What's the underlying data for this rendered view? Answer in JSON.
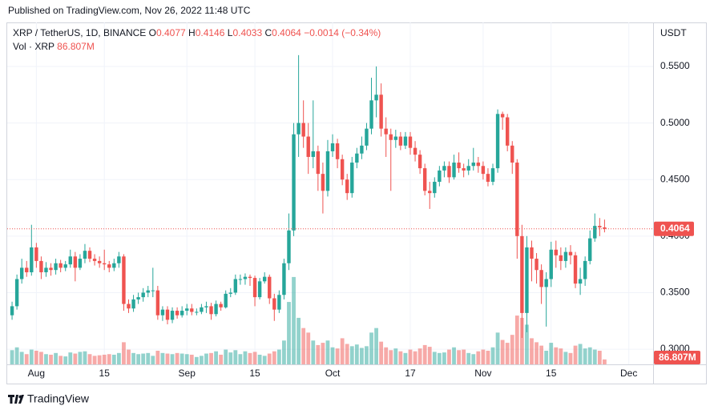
{
  "published": "Published on TradingView.com, Nov 26, 2022 11:48 UTC",
  "brand": "TradingView",
  "chart_data": {
    "type": "candlestick",
    "legend": {
      "symbol": "XRP / TetherUS, 1D, BINANCE",
      "keys": [
        "O",
        "H",
        "L",
        "C"
      ],
      "change": "−0.0014 (−0.34%)",
      "volume_name": "Vol · XRP"
    },
    "currency": "USDT",
    "up_color": "#26a69a",
    "down_color": "#ef5350",
    "volume_up_color": "rgba(38,166,154,0.5)",
    "volume_down_color": "rgba(239,83,80,0.5)",
    "grid": true,
    "xlim": [
      "2022-07-26",
      "2022-12-06"
    ],
    "xticks": [
      {
        "value": "2022-08-01",
        "label": "Aug"
      },
      {
        "value": "2022-08-15",
        "label": "15"
      },
      {
        "value": "2022-09-01",
        "label": "Sep"
      },
      {
        "value": "2022-09-15",
        "label": "15"
      },
      {
        "value": "2022-10-01",
        "label": "Oct"
      },
      {
        "value": "2022-10-17",
        "label": "17"
      },
      {
        "value": "2022-11-01",
        "label": "Nov"
      },
      {
        "value": "2022-11-15",
        "label": "15"
      },
      {
        "value": "2022-12-01",
        "label": "Dec"
      }
    ],
    "ylim": [
      0.2866,
      0.5875
    ],
    "yticks": [
      {
        "value": 0.3,
        "label": "0.3000"
      },
      {
        "value": 0.35,
        "label": "0.3500"
      },
      {
        "value": 0.4,
        "label": "0.4000"
      },
      {
        "value": 0.45,
        "label": "0.4500"
      },
      {
        "value": 0.5,
        "label": "0.5000"
      },
      {
        "value": 0.55,
        "label": "0.5500"
      }
    ],
    "volume_lim": [
      0,
      6000
    ],
    "x": [
      "2022-07-27",
      "2022-07-28",
      "2022-07-29",
      "2022-07-30",
      "2022-07-31",
      "2022-08-01",
      "2022-08-02",
      "2022-08-03",
      "2022-08-04",
      "2022-08-05",
      "2022-08-06",
      "2022-08-07",
      "2022-08-08",
      "2022-08-09",
      "2022-08-10",
      "2022-08-11",
      "2022-08-12",
      "2022-08-13",
      "2022-08-14",
      "2022-08-15",
      "2022-08-16",
      "2022-08-17",
      "2022-08-18",
      "2022-08-19",
      "2022-08-20",
      "2022-08-21",
      "2022-08-22",
      "2022-08-23",
      "2022-08-24",
      "2022-08-25",
      "2022-08-26",
      "2022-08-27",
      "2022-08-28",
      "2022-08-29",
      "2022-08-30",
      "2022-08-31",
      "2022-09-01",
      "2022-09-02",
      "2022-09-03",
      "2022-09-04",
      "2022-09-05",
      "2022-09-06",
      "2022-09-07",
      "2022-09-08",
      "2022-09-09",
      "2022-09-10",
      "2022-09-11",
      "2022-09-12",
      "2022-09-13",
      "2022-09-14",
      "2022-09-15",
      "2022-09-16",
      "2022-09-17",
      "2022-09-18",
      "2022-09-19",
      "2022-09-20",
      "2022-09-21",
      "2022-09-22",
      "2022-09-23",
      "2022-09-24",
      "2022-09-25",
      "2022-09-26",
      "2022-09-27",
      "2022-09-28",
      "2022-09-29",
      "2022-09-30",
      "2022-10-01",
      "2022-10-02",
      "2022-10-03",
      "2022-10-04",
      "2022-10-05",
      "2022-10-06",
      "2022-10-07",
      "2022-10-08",
      "2022-10-09",
      "2022-10-10",
      "2022-10-11",
      "2022-10-12",
      "2022-10-13",
      "2022-10-14",
      "2022-10-15",
      "2022-10-16",
      "2022-10-17",
      "2022-10-18",
      "2022-10-19",
      "2022-10-20",
      "2022-10-21",
      "2022-10-22",
      "2022-10-23",
      "2022-10-24",
      "2022-10-25",
      "2022-10-26",
      "2022-10-27",
      "2022-10-28",
      "2022-10-29",
      "2022-10-30",
      "2022-10-31",
      "2022-11-01",
      "2022-11-02",
      "2022-11-03",
      "2022-11-04",
      "2022-11-05",
      "2022-11-06",
      "2022-11-07",
      "2022-11-08",
      "2022-11-09",
      "2022-11-10",
      "2022-11-11",
      "2022-11-12",
      "2022-11-13",
      "2022-11-14",
      "2022-11-15",
      "2022-11-16",
      "2022-11-17",
      "2022-11-18",
      "2022-11-19",
      "2022-11-20",
      "2022-11-21",
      "2022-11-22",
      "2022-11-23",
      "2022-11-24",
      "2022-11-25",
      "2022-11-26"
    ],
    "open": [
      0.33,
      0.338,
      0.362,
      0.372,
      0.368,
      0.39,
      0.378,
      0.368,
      0.372,
      0.37,
      0.376,
      0.372,
      0.375,
      0.382,
      0.372,
      0.38,
      0.387,
      0.38,
      0.378,
      0.376,
      0.375,
      0.372,
      0.376,
      0.382,
      0.34,
      0.336,
      0.344,
      0.346,
      0.35,
      0.352,
      0.352,
      0.33,
      0.335,
      0.326,
      0.334,
      0.33,
      0.334,
      0.336,
      0.333,
      0.333,
      0.337,
      0.338,
      0.331,
      0.34,
      0.337,
      0.349,
      0.35,
      0.362,
      0.362,
      0.364,
      0.363,
      0.346,
      0.36,
      0.364,
      0.345,
      0.335,
      0.348,
      0.376,
      0.405,
      0.49,
      0.5,
      0.488,
      0.47,
      0.475,
      0.455,
      0.44,
      0.475,
      0.482,
      0.468,
      0.45,
      0.438,
      0.465,
      0.473,
      0.48,
      0.495,
      0.52,
      0.525,
      0.495,
      0.49,
      0.485,
      0.488,
      0.48,
      0.488,
      0.478,
      0.472,
      0.46,
      0.44,
      0.438,
      0.448,
      0.458,
      0.462,
      0.452,
      0.465,
      0.46,
      0.458,
      0.462,
      0.465,
      0.462,
      0.455,
      0.448,
      0.46,
      0.508,
      0.505,
      0.48,
      0.465,
      0.4,
      0.332,
      0.39,
      0.38,
      0.37,
      0.355,
      0.362,
      0.388,
      0.383,
      0.378,
      0.386,
      0.383,
      0.358,
      0.362,
      0.378,
      0.398,
      0.409,
      0.4077
    ],
    "high": [
      0.342,
      0.366,
      0.38,
      0.378,
      0.41,
      0.394,
      0.382,
      0.377,
      0.376,
      0.38,
      0.379,
      0.378,
      0.388,
      0.386,
      0.384,
      0.393,
      0.39,
      0.384,
      0.382,
      0.388,
      0.378,
      0.38,
      0.386,
      0.384,
      0.344,
      0.348,
      0.35,
      0.354,
      0.356,
      0.372,
      0.356,
      0.338,
      0.338,
      0.337,
      0.337,
      0.338,
      0.34,
      0.34,
      0.336,
      0.34,
      0.342,
      0.341,
      0.343,
      0.342,
      0.352,
      0.354,
      0.366,
      0.366,
      0.367,
      0.366,
      0.365,
      0.363,
      0.368,
      0.366,
      0.349,
      0.352,
      0.38,
      0.42,
      0.5,
      0.56,
      0.52,
      0.5,
      0.52,
      0.48,
      0.465,
      0.485,
      0.49,
      0.486,
      0.472,
      0.455,
      0.47,
      0.478,
      0.488,
      0.5,
      0.54,
      0.55,
      0.535,
      0.505,
      0.495,
      0.494,
      0.492,
      0.492,
      0.492,
      0.484,
      0.476,
      0.464,
      0.448,
      0.452,
      0.462,
      0.466,
      0.466,
      0.472,
      0.474,
      0.464,
      0.468,
      0.478,
      0.47,
      0.466,
      0.46,
      0.464,
      0.512,
      0.51,
      0.508,
      0.484,
      0.468,
      0.41,
      0.4,
      0.396,
      0.385,
      0.375,
      0.368,
      0.395,
      0.396,
      0.39,
      0.39,
      0.392,
      0.386,
      0.372,
      0.382,
      0.405,
      0.42,
      0.416,
      0.4146
    ],
    "low": [
      0.326,
      0.335,
      0.358,
      0.364,
      0.365,
      0.372,
      0.362,
      0.364,
      0.365,
      0.366,
      0.368,
      0.369,
      0.372,
      0.36,
      0.37,
      0.376,
      0.377,
      0.374,
      0.372,
      0.37,
      0.368,
      0.369,
      0.372,
      0.334,
      0.332,
      0.333,
      0.34,
      0.342,
      0.346,
      0.346,
      0.326,
      0.325,
      0.322,
      0.323,
      0.327,
      0.328,
      0.33,
      0.33,
      0.33,
      0.331,
      0.332,
      0.326,
      0.329,
      0.334,
      0.336,
      0.346,
      0.348,
      0.357,
      0.357,
      0.356,
      0.338,
      0.344,
      0.358,
      0.34,
      0.325,
      0.332,
      0.344,
      0.37,
      0.4,
      0.47,
      0.478,
      0.455,
      0.46,
      0.44,
      0.42,
      0.435,
      0.47,
      0.46,
      0.445,
      0.432,
      0.434,
      0.46,
      0.468,
      0.476,
      0.49,
      0.505,
      0.488,
      0.47,
      0.44,
      0.478,
      0.476,
      0.477,
      0.472,
      0.466,
      0.455,
      0.436,
      0.424,
      0.434,
      0.444,
      0.452,
      0.447,
      0.45,
      0.456,
      0.452,
      0.454,
      0.458,
      0.456,
      0.45,
      0.444,
      0.445,
      0.456,
      0.494,
      0.475,
      0.455,
      0.38,
      0.31,
      0.315,
      0.36,
      0.358,
      0.34,
      0.32,
      0.355,
      0.372,
      0.37,
      0.372,
      0.375,
      0.354,
      0.348,
      0.356,
      0.375,
      0.395,
      0.4,
      0.4033
    ],
    "close": [
      0.338,
      0.362,
      0.372,
      0.368,
      0.39,
      0.378,
      0.368,
      0.372,
      0.37,
      0.376,
      0.372,
      0.375,
      0.382,
      0.372,
      0.38,
      0.387,
      0.38,
      0.378,
      0.376,
      0.375,
      0.372,
      0.376,
      0.382,
      0.34,
      0.336,
      0.344,
      0.346,
      0.35,
      0.352,
      0.352,
      0.33,
      0.335,
      0.326,
      0.334,
      0.33,
      0.334,
      0.336,
      0.333,
      0.333,
      0.337,
      0.338,
      0.331,
      0.34,
      0.337,
      0.349,
      0.35,
      0.362,
      0.362,
      0.364,
      0.363,
      0.346,
      0.36,
      0.364,
      0.345,
      0.335,
      0.348,
      0.376,
      0.405,
      0.49,
      0.5,
      0.488,
      0.47,
      0.475,
      0.455,
      0.44,
      0.475,
      0.482,
      0.468,
      0.45,
      0.438,
      0.465,
      0.473,
      0.48,
      0.495,
      0.52,
      0.525,
      0.495,
      0.49,
      0.485,
      0.488,
      0.48,
      0.488,
      0.478,
      0.472,
      0.46,
      0.44,
      0.438,
      0.448,
      0.458,
      0.462,
      0.452,
      0.465,
      0.46,
      0.458,
      0.462,
      0.465,
      0.462,
      0.455,
      0.448,
      0.46,
      0.508,
      0.505,
      0.48,
      0.465,
      0.4,
      0.332,
      0.39,
      0.38,
      0.37,
      0.355,
      0.362,
      0.388,
      0.383,
      0.378,
      0.386,
      0.383,
      0.358,
      0.362,
      0.378,
      0.398,
      0.409,
      0.4077,
      0.4064
    ],
    "volume": [
      250,
      300,
      220,
      180,
      260,
      240,
      220,
      180,
      170,
      200,
      150,
      140,
      210,
      190,
      220,
      230,
      180,
      150,
      160,
      170,
      180,
      170,
      200,
      390,
      260,
      200,
      180,
      190,
      200,
      150,
      240,
      200,
      190,
      180,
      200,
      190,
      180,
      170,
      130,
      150,
      190,
      200,
      230,
      170,
      260,
      210,
      250,
      180,
      230,
      200,
      220,
      170,
      150,
      190,
      230,
      260,
      420,
      1100,
      1540,
      820,
      640,
      560,
      420,
      340,
      380,
      420,
      300,
      280,
      460,
      360,
      320,
      350,
      290,
      320,
      560,
      640,
      400,
      300,
      250,
      280,
      230,
      200,
      260,
      230,
      280,
      340,
      310,
      220,
      200,
      210,
      260,
      300,
      250,
      260,
      200,
      180,
      230,
      260,
      240,
      300,
      560,
      430,
      380,
      520,
      860,
      820,
      700,
      460,
      390,
      330,
      240,
      380,
      300,
      280,
      220,
      200,
      330,
      360,
      280,
      300,
      260,
      240,
      86.807
    ],
    "volume_value_labels": [
      null,
      null,
      null,
      null,
      null,
      null,
      null,
      null,
      null,
      null,
      null,
      null,
      null,
      null,
      null,
      null,
      null,
      null,
      null,
      null,
      null,
      null,
      null,
      null,
      null,
      null,
      null,
      null,
      null,
      null,
      null,
      null,
      null,
      null,
      null,
      null,
      null,
      null,
      null,
      null,
      null,
      null,
      null,
      null,
      null,
      null,
      null,
      null,
      null,
      null,
      null,
      null,
      null,
      null,
      null,
      null,
      null,
      null,
      null,
      null,
      null,
      null,
      null,
      null,
      null,
      null,
      null,
      null,
      null,
      null,
      null,
      null,
      null,
      null,
      null,
      null,
      null,
      null,
      null,
      null,
      null,
      null,
      null,
      null,
      null,
      null,
      null,
      null,
      null,
      null,
      null,
      null,
      null,
      null,
      null,
      null,
      null,
      null,
      null,
      null,
      null,
      null,
      null,
      null,
      null,
      null,
      null,
      null,
      null,
      null,
      null,
      null,
      null,
      null,
      null,
      null,
      null,
      null,
      null,
      null,
      null,
      null,
      "86.807M"
    ]
  }
}
